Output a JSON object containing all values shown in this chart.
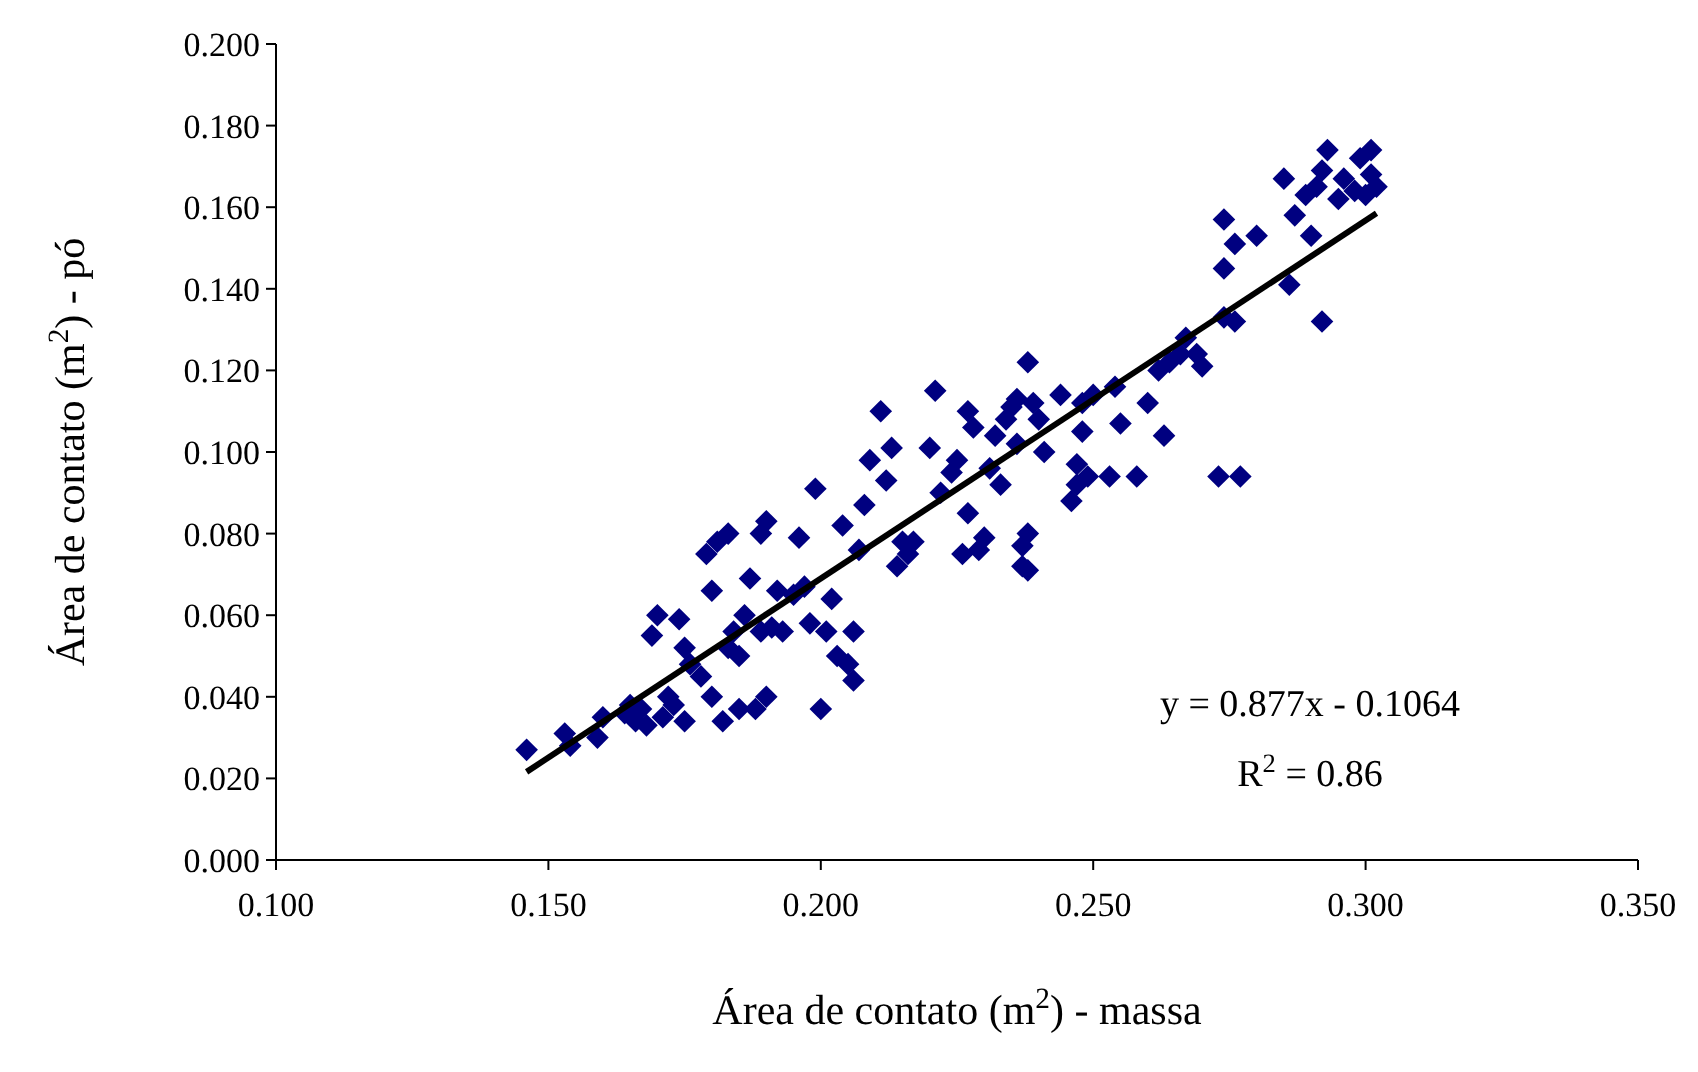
{
  "chart_data": {
    "type": "scatter",
    "xlabel": "Área de contato (m$^{2}$) - massa",
    "ylabel": "Área de contato (m$^{2}$) - pó",
    "xlim": [
      0.1,
      0.35
    ],
    "xticks": [
      {
        "value": 0.1,
        "label": "0.100"
      },
      {
        "value": 0.15,
        "label": "0.150"
      },
      {
        "value": 0.2,
        "label": "0.200"
      },
      {
        "value": 0.25,
        "label": "0.250"
      },
      {
        "value": 0.3,
        "label": "0.300"
      },
      {
        "value": 0.35,
        "label": "0.350"
      }
    ],
    "ylim": [
      0,
      0.2
    ],
    "yticks": [
      {
        "value": 0,
        "label": "0.000"
      },
      {
        "value": 0.02,
        "label": "0.020"
      },
      {
        "value": 0.04,
        "label": "0.040"
      },
      {
        "value": 0.06,
        "label": "0.060"
      },
      {
        "value": 0.08,
        "label": "0.080"
      },
      {
        "value": 0.1,
        "label": "0.100"
      },
      {
        "value": 0.12,
        "label": "0.120"
      },
      {
        "value": 0.14,
        "label": "0.140"
      },
      {
        "value": 0.16,
        "label": "0.160"
      },
      {
        "value": 0.18,
        "label": "0.180"
      },
      {
        "value": 0.2,
        "label": "0.200"
      }
    ],
    "grid": false,
    "marker": "diamond",
    "annotations": [
      "y = 0.877x - 0.1064",
      "R$^{2}$ = 0.86"
    ],
    "series": [
      {
        "color": "#000080",
        "x": [
          0.146,
          0.153,
          0.154,
          0.159,
          0.16,
          0.164,
          0.165,
          0.166,
          0.167,
          0.168,
          0.169,
          0.17,
          0.171,
          0.172,
          0.173,
          0.174,
          0.175,
          0.175,
          0.176,
          0.178,
          0.179,
          0.18,
          0.18,
          0.181,
          0.182,
          0.183,
          0.183,
          0.184,
          0.185,
          0.185,
          0.186,
          0.187,
          0.188,
          0.189,
          0.189,
          0.19,
          0.19,
          0.191,
          0.192,
          0.193,
          0.195,
          0.196,
          0.197,
          0.198,
          0.199,
          0.2,
          0.201,
          0.202,
          0.203,
          0.204,
          0.205,
          0.206,
          0.206,
          0.207,
          0.208,
          0.209,
          0.211,
          0.212,
          0.213,
          0.214,
          0.215,
          0.216,
          0.217,
          0.22,
          0.221,
          0.222,
          0.224,
          0.225,
          0.226,
          0.227,
          0.227,
          0.228,
          0.229,
          0.23,
          0.231,
          0.232,
          0.233,
          0.234,
          0.235,
          0.236,
          0.236,
          0.237,
          0.237,
          0.238,
          0.238,
          0.238,
          0.239,
          0.24,
          0.241,
          0.244,
          0.246,
          0.247,
          0.247,
          0.248,
          0.248,
          0.249,
          0.25,
          0.253,
          0.254,
          0.255,
          0.258,
          0.26,
          0.262,
          0.263,
          0.264,
          0.266,
          0.267,
          0.269,
          0.27,
          0.273,
          0.274,
          0.274,
          0.274,
          0.276,
          0.276,
          0.277,
          0.28,
          0.285,
          0.286,
          0.287,
          0.289,
          0.29,
          0.291,
          0.292,
          0.292,
          0.293,
          0.295,
          0.296,
          0.298,
          0.299,
          0.3,
          0.301,
          0.301,
          0.302
        ],
        "values": [
          0.027,
          0.031,
          0.028,
          0.03,
          0.035,
          0.036,
          0.038,
          0.034,
          0.037,
          0.033,
          0.055,
          0.06,
          0.035,
          0.04,
          0.038,
          0.059,
          0.034,
          0.052,
          0.048,
          0.045,
          0.075,
          0.066,
          0.04,
          0.078,
          0.034,
          0.08,
          0.052,
          0.056,
          0.05,
          0.037,
          0.06,
          0.069,
          0.037,
          0.08,
          0.056,
          0.083,
          0.04,
          0.057,
          0.066,
          0.056,
          0.065,
          0.079,
          0.067,
          0.058,
          0.091,
          0.037,
          0.056,
          0.064,
          0.05,
          0.082,
          0.048,
          0.056,
          0.044,
          0.076,
          0.087,
          0.098,
          0.11,
          0.093,
          0.101,
          0.072,
          0.078,
          0.075,
          0.078,
          0.101,
          0.115,
          0.09,
          0.095,
          0.098,
          0.075,
          0.085,
          0.11,
          0.106,
          0.076,
          0.079,
          0.096,
          0.104,
          0.092,
          0.108,
          0.111,
          0.113,
          0.102,
          0.072,
          0.077,
          0.122,
          0.08,
          0.071,
          0.112,
          0.108,
          0.1,
          0.114,
          0.088,
          0.092,
          0.097,
          0.105,
          0.112,
          0.094,
          0.114,
          0.094,
          0.116,
          0.107,
          0.094,
          0.112,
          0.12,
          0.104,
          0.122,
          0.124,
          0.128,
          0.124,
          0.121,
          0.094,
          0.133,
          0.145,
          0.157,
          0.151,
          0.132,
          0.094,
          0.153,
          0.167,
          0.141,
          0.158,
          0.163,
          0.153,
          0.165,
          0.169,
          0.132,
          0.174,
          0.162,
          0.167,
          0.164,
          0.172,
          0.163,
          0.174,
          0.168,
          0.165
        ]
      },
      {
        "type": "line",
        "color": "#000000",
        "marker": "none",
        "x": [
          0.146,
          0.302
        ],
        "values": [
          0.0216,
          0.1585
        ]
      }
    ]
  }
}
